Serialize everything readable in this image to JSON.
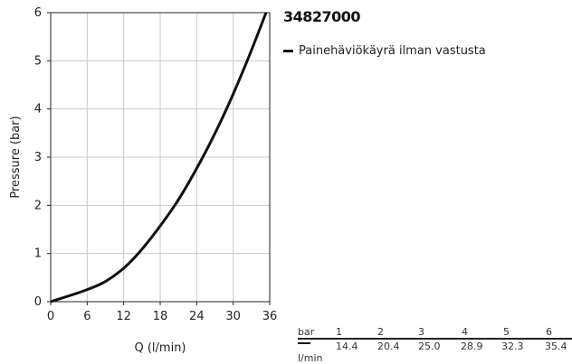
{
  "chart_data": {
    "type": "line",
    "title": "34827000",
    "xlabel": "Q (l/min)",
    "ylabel": "Pressure (bar)",
    "xlim": [
      0,
      36
    ],
    "ylim": [
      0,
      6
    ],
    "xticks": [
      0,
      6,
      12,
      18,
      24,
      30,
      36
    ],
    "yticks": [
      0,
      1,
      2,
      3,
      4,
      5,
      6
    ],
    "grid": true,
    "legend_placement": "right",
    "series": [
      {
        "name": "Painehäviökäyrä ilman vastusta",
        "color": "#111111",
        "x": [
          0,
          6,
          10,
          14.4,
          20.4,
          25.0,
          28.9,
          32.3,
          35.4
        ],
        "y": [
          0,
          0.25,
          0.5,
          1,
          2,
          3,
          4,
          5,
          6
        ]
      }
    ]
  },
  "table": {
    "unit_top": "bar",
    "unit_bottom": "l/min",
    "bar_values": [
      "1",
      "2",
      "3",
      "4",
      "5",
      "6"
    ],
    "flow_values": [
      "14.4",
      "20.4",
      "25.0",
      "28.9",
      "32.3",
      "35.4"
    ]
  }
}
